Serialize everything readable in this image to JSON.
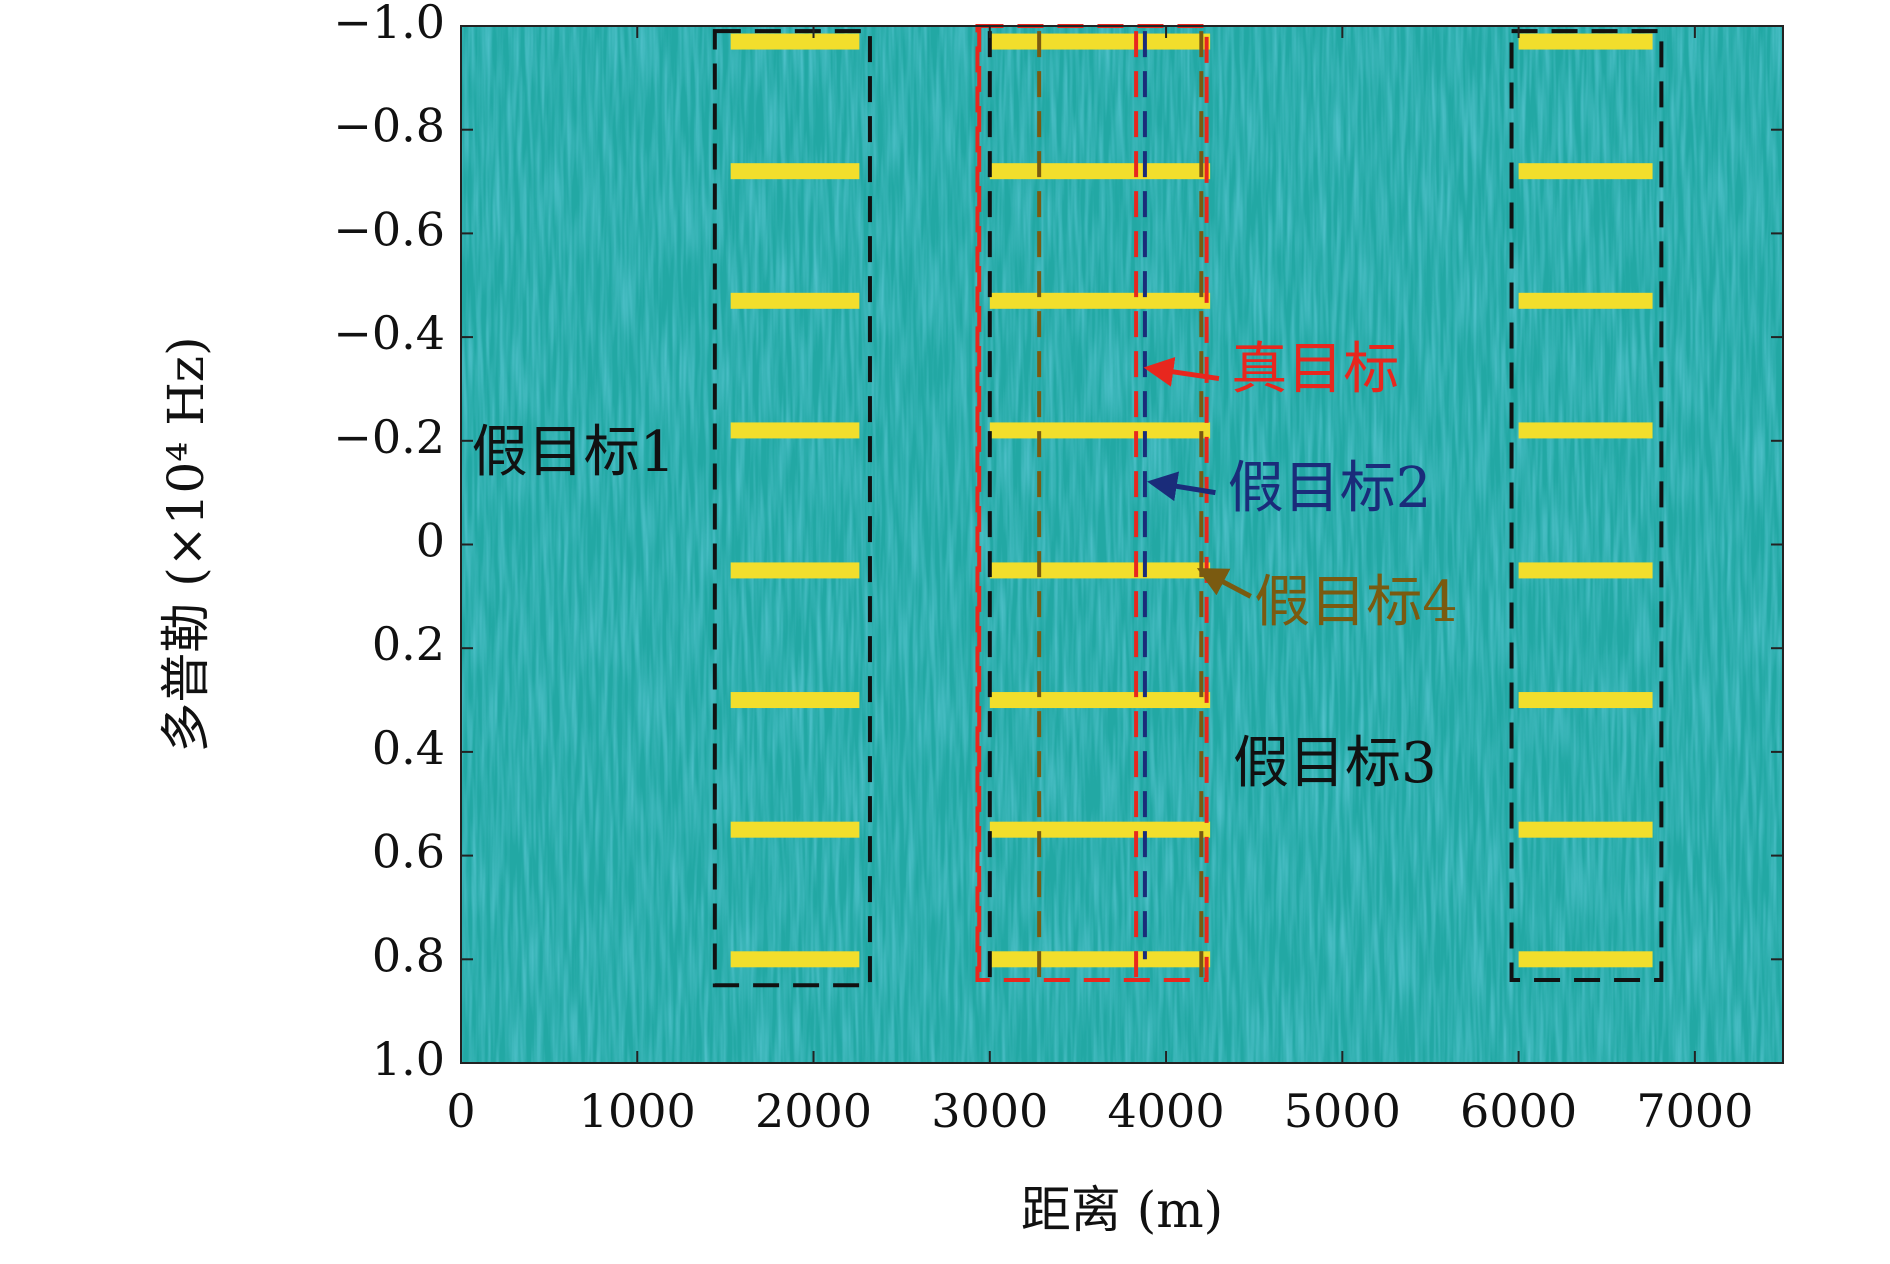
{
  "chart_data": {
    "type": "heatmap",
    "xlabel": "距离 (m)",
    "ylabel": "多普勒 (×10⁴ Hz)",
    "xlim": [
      0,
      7500
    ],
    "ylim": [
      -1.0,
      1.0
    ],
    "y_reversed": true,
    "x_ticks": [
      0,
      1000,
      2000,
      3000,
      4000,
      5000,
      6000,
      7000
    ],
    "x_tick_labels": [
      "0",
      "1000",
      "2000",
      "3000",
      "4000",
      "5000",
      "6000",
      "7000"
    ],
    "y_ticks": [
      -1.0,
      -0.8,
      -0.6,
      -0.4,
      -0.2,
      0,
      0.2,
      0.4,
      0.6,
      0.8,
      1.0
    ],
    "y_tick_labels": [
      "−1.0",
      "−0.8",
      "−0.6",
      "−0.4",
      "−0.2",
      "0",
      "0.2",
      "0.4",
      "0.6",
      "0.8",
      "1.0"
    ],
    "colors": {
      "background": "#22a8a4",
      "stripe": "#f2de2c",
      "false_target_box": "#111111",
      "true_target_box": "#e8271e",
      "false_target_2": "#1a2c7a",
      "false_target_4": "#7a5a10"
    },
    "grid": false,
    "stripe_doppler": [
      -0.97,
      -0.72,
      -0.47,
      -0.22,
      0.05,
      0.3,
      0.55,
      0.8
    ],
    "stripe_groups": [
      {
        "x_start": 1530,
        "x_end": 2260
      },
      {
        "x_start": 3000,
        "x_end": 4250
      },
      {
        "x_start": 6000,
        "x_end": 6760
      }
    ],
    "boxes": [
      {
        "color": "false_target_box",
        "x": [
          1440,
          2320
        ],
        "y": [
          -0.99,
          0.85
        ]
      },
      {
        "color": "false_target_box",
        "x": [
          5960,
          6810
        ],
        "y": [
          -0.99,
          0.84
        ]
      },
      {
        "color": "true_target_box",
        "x": [
          2930,
          4230
        ],
        "y": [
          -1.0,
          0.84
        ]
      }
    ],
    "dashed_lines": [
      {
        "color": "true_target_box",
        "x": 2940,
        "y": [
          -1.0,
          0.84
        ]
      },
      {
        "color": "false_target_box",
        "x": 3000,
        "y": [
          -0.99,
          0.84
        ]
      },
      {
        "color": "false_target_4",
        "x": 3280,
        "y": [
          -0.99,
          0.84
        ]
      },
      {
        "color": "true_target_box",
        "x": 3830,
        "y": [
          -0.99,
          0.84
        ]
      },
      {
        "color": "false_target_2",
        "x": 3880,
        "y": [
          -0.99,
          0.8
        ]
      },
      {
        "color": "false_target_4",
        "x": 4200,
        "y": [
          -0.99,
          0.84
        ]
      }
    ],
    "annotations": [
      {
        "text": "真目标",
        "color": "true_target_box",
        "text_x": 4370,
        "text_y": -0.33,
        "arrow_from": [
          4300,
          -0.32
        ],
        "arrow_to": [
          3900,
          -0.34
        ]
      },
      {
        "text": "假目标2",
        "color": "false_target_2",
        "text_x": 4350,
        "text_y": -0.1,
        "arrow_from": [
          4280,
          -0.1
        ],
        "arrow_to": [
          3920,
          -0.12
        ]
      },
      {
        "text": "假目标4",
        "color": "false_target_4",
        "text_x": 4500,
        "text_y": 0.12,
        "arrow_from": [
          4480,
          0.1
        ],
        "arrow_to": [
          4200,
          0.05
        ]
      },
      {
        "text": "假目标1",
        "color": "false_target_box",
        "text_x": 60,
        "text_y": -0.17,
        "arrow_from": null,
        "arrow_to": null
      },
      {
        "text": "假目标3",
        "color": "false_target_box",
        "text_x": 4380,
        "text_y": 0.43,
        "arrow_from": null,
        "arrow_to": null
      }
    ]
  }
}
